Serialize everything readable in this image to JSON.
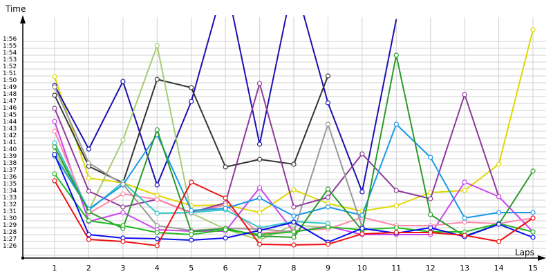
{
  "chart_data": {
    "type": "line",
    "title": "",
    "xlabel": "Laps",
    "ylabel": "Time",
    "x": [
      1,
      2,
      3,
      4,
      5,
      6,
      7,
      8,
      9,
      10,
      11,
      12,
      13,
      14,
      15
    ],
    "y_ticks": [
      "1:26",
      "1:27",
      "1:28",
      "1:29",
      "1:30",
      "1:31",
      "1:32",
      "1:33",
      "1:34",
      "1:35",
      "1:36",
      "1:37",
      "1:38",
      "1:39",
      "1:40",
      "1:41",
      "1:42",
      "1:43",
      "1:44",
      "1:45",
      "1:46",
      "1:47",
      "1:48",
      "1:49",
      "1:50",
      "1:51",
      "1:52",
      "1:53",
      "1:54",
      "1:55",
      "1:56"
    ],
    "ylim_seconds": [
      86,
      116
    ],
    "grid": true,
    "legend": null,
    "series": [
      {
        "name": "yellow",
        "color": "#e0d800",
        "values": [
          110.9,
          96.2,
          95.5,
          93.7,
          92.2,
          92.3,
          91.2,
          94.5,
          92.5,
          91.4,
          92.2,
          94.1,
          94.4,
          98.2,
          117.7
        ]
      },
      {
        "name": "navy",
        "color": "#1a10b0",
        "values": [
          109.6,
          100.4,
          110.2,
          95.2,
          107.3,
          125,
          101.1,
          125,
          107.1,
          94.2,
          119.2,
          null,
          null,
          null,
          null
        ]
      },
      {
        "name": "dark-gray",
        "color": "#333333",
        "values": [
          108.2,
          97.9,
          95.5,
          110.5,
          109.3,
          97.8,
          98.9,
          98.2,
          111.0,
          null,
          null,
          null,
          null,
          null,
          null
        ]
      },
      {
        "name": "light-green",
        "color": "#a8cc70",
        "values": [
          100.0,
          91.5,
          101.7,
          115.4,
          91.1,
          88.8,
          87.2,
          89.4,
          89.0,
          null,
          null,
          null,
          null,
          null,
          null
        ]
      },
      {
        "name": "purple",
        "color": "#8e3a9a",
        "values": [
          106.3,
          94.3,
          92.0,
          93.1,
          91.2,
          92.6,
          109.9,
          92.0,
          93.4,
          99.7,
          94.4,
          93.2,
          108.3,
          93.5,
          null
        ]
      },
      {
        "name": "magenta",
        "color": "#cc44ee",
        "values": [
          104.4,
          89.9,
          91.2,
          88.7,
          88.5,
          88.5,
          94.8,
          88.4,
          89.2,
          88.0,
          88.0,
          88.0,
          95.6,
          93.5,
          88.4
        ]
      },
      {
        "name": "pink",
        "color": "#ff88aa",
        "values": [
          103.0,
          91.1,
          93.9,
          93.1,
          91.1,
          92.3,
          88.2,
          88.6,
          88.8,
          90.5,
          89.3,
          89.3,
          89.8,
          89.6,
          90.4
        ]
      },
      {
        "name": "teal",
        "color": "#30c8c8",
        "values": [
          101.3,
          91.5,
          95.6,
          91.1,
          91.2,
          91.6,
          89.0,
          89.9,
          89.6,
          null,
          null,
          null,
          null,
          null,
          null
        ]
      },
      {
        "name": "sky-blue",
        "color": "#1898e8",
        "values": [
          99.4,
          91.7,
          95.2,
          102.5,
          91.5,
          91.8,
          93.3,
          90.7,
          92.0,
          90.8,
          104.0,
          99.2,
          90.4,
          91.2,
          91.2
        ]
      },
      {
        "name": "gray",
        "color": "#999999",
        "values": [
          109.4,
          98.4,
          95.3,
          89.3,
          88.6,
          88.9,
          88.8,
          88.4,
          104.0,
          89.1,
          null,
          null,
          null,
          null,
          null
        ]
      },
      {
        "name": "dark-green",
        "color": "#2a9a2a",
        "values": [
          100.7,
          91.3,
          88.9,
          103.2,
          88.4,
          88.9,
          87.8,
          87.6,
          94.6,
          88.6,
          114.0,
          90.9,
          87.8,
          89.5,
          97.2
        ]
      },
      {
        "name": "green",
        "color": "#22bb22",
        "values": [
          96.8,
          90.0,
          89.3,
          88.3,
          88.0,
          88.7,
          88.0,
          88.4,
          89.1,
          88.7,
          89.0,
          88.4,
          88.4,
          89.6,
          88.4
        ]
      },
      {
        "name": "blue",
        "color": "#0a0aee",
        "values": [
          99.6,
          88.0,
          87.5,
          87.4,
          87.2,
          87.5,
          88.6,
          89.8,
          86.9,
          88.9,
          88.2,
          89.0,
          87.7,
          89.5,
          87.6
        ]
      },
      {
        "name": "red",
        "color": "#ee1111",
        "values": [
          95.8,
          87.3,
          87.0,
          86.4,
          95.6,
          93.3,
          86.6,
          86.5,
          86.6,
          88.1,
          88.3,
          88.3,
          87.9,
          87.0,
          90.4
        ]
      }
    ]
  },
  "axes": {
    "y_title": "Time",
    "x_title": "Laps"
  }
}
